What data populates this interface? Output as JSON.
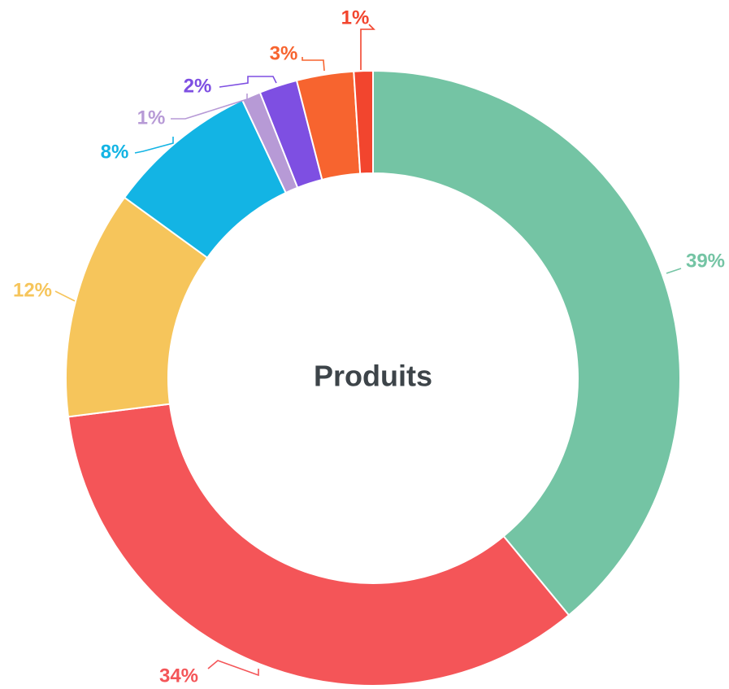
{
  "chart_data": {
    "type": "pie",
    "center_label": "Produits",
    "slices": [
      {
        "value": 39,
        "label": "39%",
        "color": "#74c4a4"
      },
      {
        "value": 34,
        "label": "34%",
        "color": "#f45558"
      },
      {
        "value": 12,
        "label": "12%",
        "color": "#f6c55b"
      },
      {
        "value": 8,
        "label": "8%",
        "color": "#13b4e4"
      },
      {
        "value": 1,
        "label": "1%",
        "color": "#b79ad6"
      },
      {
        "value": 2,
        "label": "2%",
        "color": "#7e4fe2"
      },
      {
        "value": 3,
        "label": "3%",
        "color": "#f7642f"
      },
      {
        "value": 1,
        "label": "1%",
        "color": "#f2452e"
      }
    ],
    "legend": "none"
  }
}
